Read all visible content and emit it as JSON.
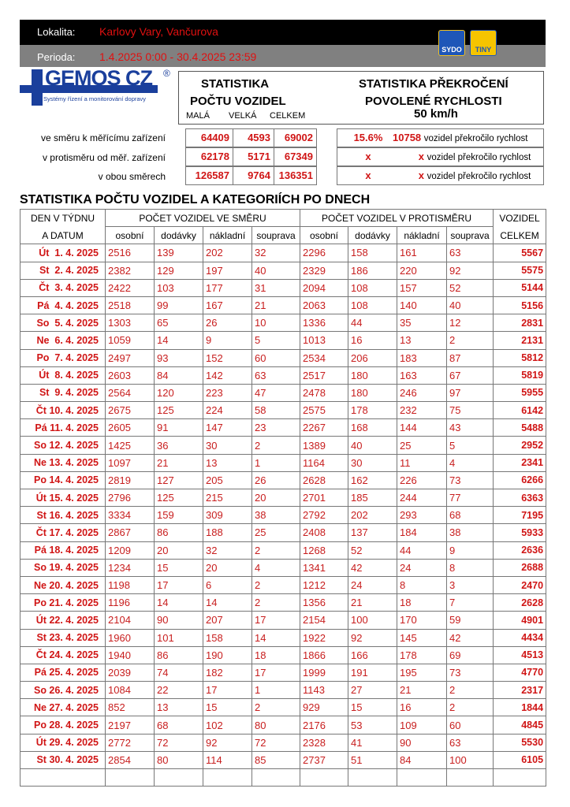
{
  "header": {
    "location_label": "Lokalita:",
    "location": "Karlovy Vary, Vančurova",
    "period_label": "Perioda:",
    "period": "1.4.2025 0:00 - 30.4.2025 23:59",
    "badges": [
      "SYDO",
      "TINY"
    ]
  },
  "logo": {
    "name": "GEMOS CZ",
    "registered": "®",
    "tagline": "Systémy řízení a monitorování dopravy"
  },
  "stats": {
    "count_title_1": "STATISTIKA",
    "count_title_2": "POČTU VOZIDEL",
    "columns": [
      "MALÁ",
      "VELKÁ",
      "CELKEM"
    ],
    "speed_title_1": "STATISTIKA PŘEKROČENÍ",
    "speed_title_2": "POVOLENÉ RYCHLOSTI",
    "speed_limit": "50 km/h",
    "rows": [
      {
        "label": "ve směru k měřícímu zařízení",
        "small": "64409",
        "large": "4593",
        "total": "69002",
        "pct": "15.6%",
        "over": "10758",
        "over_text": "vozidel překročilo rychlost"
      },
      {
        "label": "v protisměru od měř. zařízení",
        "small": "62178",
        "large": "5171",
        "total": "67349",
        "pct": "x",
        "over": "x",
        "over_text": "vozidel překročilo rychlost"
      },
      {
        "label": "v obou směrech",
        "small": "126587",
        "large": "9764",
        "total": "136351",
        "pct": "x",
        "over": "x",
        "over_text": "vozidel překročilo rychlost"
      }
    ]
  },
  "table": {
    "title": "STATISTIKA POČTU VOZIDEL A KATEGORIÍCH PO DNECH",
    "head_day_1": "DEN V TÝDNU",
    "head_day_2": "A DATUM",
    "head_dir": "POČET VOZIDEL VE SMĚRU",
    "head_opp": "POČET VOZIDEL V PROTISMĚRU",
    "head_total_1": "VOZIDEL",
    "head_total_2": "CELKEM",
    "sub": [
      "osobní",
      "dodávky",
      "nákladní",
      "souprava",
      "osobní",
      "dodávky",
      "nákladní",
      "souprava"
    ],
    "rows": [
      [
        "Út  1. 4. 2025",
        "2516",
        "139",
        "202",
        "32",
        "2296",
        "158",
        "161",
        "63",
        "5567"
      ],
      [
        "St  2. 4. 2025",
        "2382",
        "129",
        "197",
        "40",
        "2329",
        "186",
        "220",
        "92",
        "5575"
      ],
      [
        "Čt  3. 4. 2025",
        "2422",
        "103",
        "177",
        "31",
        "2094",
        "108",
        "157",
        "52",
        "5144"
      ],
      [
        "Pá  4. 4. 2025",
        "2518",
        "99",
        "167",
        "21",
        "2063",
        "108",
        "140",
        "40",
        "5156"
      ],
      [
        "So  5. 4. 2025",
        "1303",
        "65",
        "26",
        "10",
        "1336",
        "44",
        "35",
        "12",
        "2831"
      ],
      [
        "Ne  6. 4. 2025",
        "1059",
        "14",
        "9",
        "5",
        "1013",
        "16",
        "13",
        "2",
        "2131"
      ],
      [
        "Po  7. 4. 2025",
        "2497",
        "93",
        "152",
        "60",
        "2534",
        "206",
        "183",
        "87",
        "5812"
      ],
      [
        "Út  8. 4. 2025",
        "2603",
        "84",
        "142",
        "63",
        "2517",
        "180",
        "163",
        "67",
        "5819"
      ],
      [
        "St  9. 4. 2025",
        "2564",
        "120",
        "223",
        "47",
        "2478",
        "180",
        "246",
        "97",
        "5955"
      ],
      [
        "Čt 10. 4. 2025",
        "2675",
        "125",
        "224",
        "58",
        "2575",
        "178",
        "232",
        "75",
        "6142"
      ],
      [
        "Pá 11. 4. 2025",
        "2605",
        "91",
        "147",
        "23",
        "2267",
        "168",
        "144",
        "43",
        "5488"
      ],
      [
        "So 12. 4. 2025",
        "1425",
        "36",
        "30",
        "2",
        "1389",
        "40",
        "25",
        "5",
        "2952"
      ],
      [
        "Ne 13. 4. 2025",
        "1097",
        "21",
        "13",
        "1",
        "1164",
        "30",
        "11",
        "4",
        "2341"
      ],
      [
        "Po 14. 4. 2025",
        "2819",
        "127",
        "205",
        "26",
        "2628",
        "162",
        "226",
        "73",
        "6266"
      ],
      [
        "Út 15. 4. 2025",
        "2796",
        "125",
        "215",
        "20",
        "2701",
        "185",
        "244",
        "77",
        "6363"
      ],
      [
        "St 16. 4. 2025",
        "3334",
        "159",
        "309",
        "38",
        "2792",
        "202",
        "293",
        "68",
        "7195"
      ],
      [
        "Čt 17. 4. 2025",
        "2867",
        "86",
        "188",
        "25",
        "2408",
        "137",
        "184",
        "38",
        "5933"
      ],
      [
        "Pá 18. 4. 2025",
        "1209",
        "20",
        "32",
        "2",
        "1268",
        "52",
        "44",
        "9",
        "2636"
      ],
      [
        "So 19. 4. 2025",
        "1234",
        "15",
        "20",
        "4",
        "1341",
        "42",
        "24",
        "8",
        "2688"
      ],
      [
        "Ne 20. 4. 2025",
        "1198",
        "17",
        "6",
        "2",
        "1212",
        "24",
        "8",
        "3",
        "2470"
      ],
      [
        "Po 21. 4. 2025",
        "1196",
        "14",
        "14",
        "2",
        "1356",
        "21",
        "18",
        "7",
        "2628"
      ],
      [
        "Út 22. 4. 2025",
        "2104",
        "90",
        "207",
        "17",
        "2154",
        "100",
        "170",
        "59",
        "4901"
      ],
      [
        "St 23. 4. 2025",
        "1960",
        "101",
        "158",
        "14",
        "1922",
        "92",
        "145",
        "42",
        "4434"
      ],
      [
        "Čt 24. 4. 2025",
        "1940",
        "86",
        "190",
        "18",
        "1866",
        "166",
        "178",
        "69",
        "4513"
      ],
      [
        "Pá 25. 4. 2025",
        "2039",
        "74",
        "182",
        "17",
        "1999",
        "191",
        "195",
        "73",
        "4770"
      ],
      [
        "So 26. 4. 2025",
        "1084",
        "22",
        "17",
        "1",
        "1143",
        "27",
        "21",
        "2",
        "2317"
      ],
      [
        "Ne 27. 4. 2025",
        "852",
        "13",
        "15",
        "2",
        "929",
        "15",
        "16",
        "2",
        "1844"
      ],
      [
        "Po 28. 4. 2025",
        "2197",
        "68",
        "102",
        "80",
        "2176",
        "53",
        "109",
        "60",
        "4845"
      ],
      [
        "Út 29. 4. 2025",
        "2772",
        "72",
        "92",
        "72",
        "2328",
        "41",
        "90",
        "63",
        "5530"
      ],
      [
        "St 30. 4. 2025",
        "2854",
        "80",
        "114",
        "85",
        "2737",
        "51",
        "84",
        "100",
        "6105"
      ]
    ]
  },
  "colors": {
    "accent_red": "#d01515",
    "logo_blue": "#1a3f9c",
    "header_black": "#000000",
    "header_gray": "#808080"
  }
}
